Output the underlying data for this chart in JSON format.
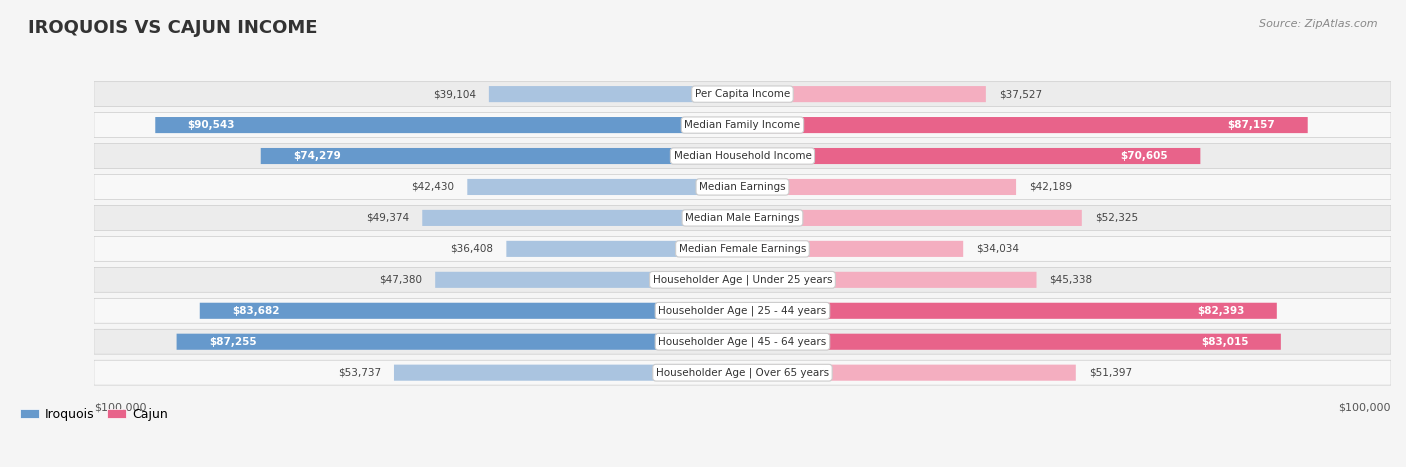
{
  "title": "IROQUOIS VS CAJUN INCOME",
  "source": "Source: ZipAtlas.com",
  "categories": [
    "Per Capita Income",
    "Median Family Income",
    "Median Household Income",
    "Median Earnings",
    "Median Male Earnings",
    "Median Female Earnings",
    "Householder Age | Under 25 years",
    "Householder Age | 25 - 44 years",
    "Householder Age | 45 - 64 years",
    "Householder Age | Over 65 years"
  ],
  "iroquois_values": [
    39104,
    90543,
    74279,
    42430,
    49374,
    36408,
    47380,
    83682,
    87255,
    53737
  ],
  "cajun_values": [
    37527,
    87157,
    70605,
    42189,
    52325,
    34034,
    45338,
    82393,
    83015,
    51397
  ],
  "iroquois_labels": [
    "$39,104",
    "$90,543",
    "$74,279",
    "$42,430",
    "$49,374",
    "$36,408",
    "$47,380",
    "$83,682",
    "$87,255",
    "$53,737"
  ],
  "cajun_labels": [
    "$37,527",
    "$87,157",
    "$70,605",
    "$42,189",
    "$52,325",
    "$34,034",
    "$45,338",
    "$82,393",
    "$83,015",
    "$51,397"
  ],
  "max_value": 100000,
  "iroquois_color_dark": "#6699cc",
  "iroquois_color_light": "#aac4e0",
  "cajun_color_dark": "#e8638a",
  "cajun_color_light": "#f4aec0",
  "background_color": "#f5f5f5",
  "row_bg_light": "#f0f0f0",
  "row_bg_white": "#ffffff",
  "legend_iroquois": "Iroquois",
  "legend_cajun": "Cajun",
  "xlabel_left": "$100,000",
  "xlabel_right": "$100,000"
}
